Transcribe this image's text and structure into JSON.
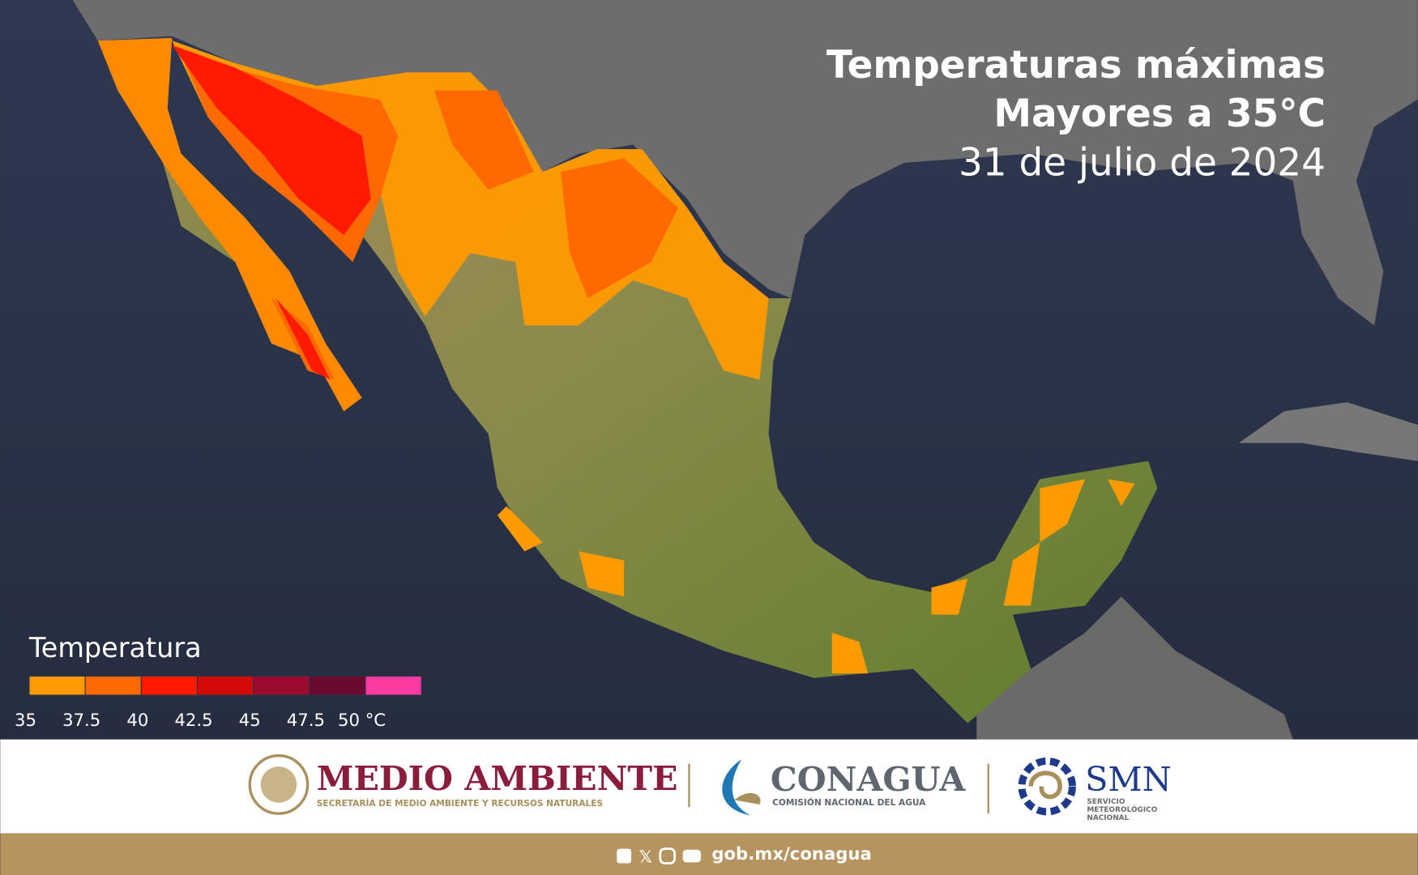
{
  "header": {
    "title_line1": "Temperaturas máximas",
    "title_line2": "Mayores a 35°C",
    "date": "31 de julio de 2024"
  },
  "legend": {
    "title": "Temperatura",
    "colors": [
      "#ff9a00",
      "#ff6a00",
      "#ff1a00",
      "#d40a0a",
      "#9c0a30",
      "#6a0a30",
      "#ff3aa0"
    ],
    "labels": [
      "35",
      "37.5",
      "40",
      "42.5",
      "45",
      "47.5",
      "50 °C"
    ]
  },
  "logos": [
    {
      "name": "MEDIO AMBIENTE",
      "subtitle": "SECRETARÍA DE MEDIO AMBIENTE Y RECURSOS NATURALES"
    },
    {
      "name": "CONAGUA",
      "subtitle": "COMISIÓN NACIONAL DEL AGUA"
    },
    {
      "name": "SMN",
      "subtitle": "SERVICIO METEOROLÓGICO NACIONAL"
    }
  ],
  "footer": {
    "url": "gob.mx/conagua"
  }
}
